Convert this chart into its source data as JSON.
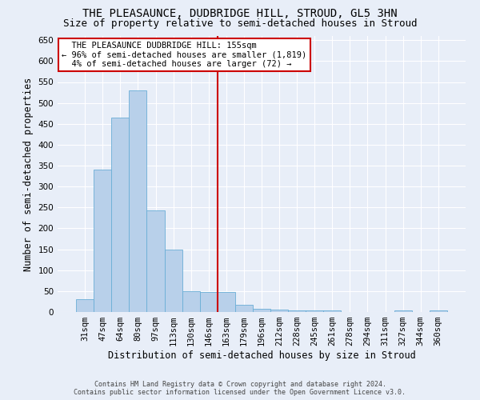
{
  "title_line1": "THE PLEASAUNCE, DUDBRIDGE HILL, STROUD, GL5 3HN",
  "title_line2": "Size of property relative to semi-detached houses in Stroud",
  "xlabel": "Distribution of semi-detached houses by size in Stroud",
  "ylabel": "Number of semi-detached properties",
  "annotation_line1": "  THE PLEASAUNCE DUDBRIDGE HILL: 155sqm  ",
  "annotation_line2": "← 96% of semi-detached houses are smaller (1,819)",
  "annotation_line3": "  4% of semi-detached houses are larger (72) →  ",
  "footer_line1": "Contains HM Land Registry data © Crown copyright and database right 2024.",
  "footer_line2": "Contains public sector information licensed under the Open Government Licence v3.0.",
  "categories": [
    "31sqm",
    "47sqm",
    "64sqm",
    "80sqm",
    "97sqm",
    "113sqm",
    "130sqm",
    "146sqm",
    "163sqm",
    "179sqm",
    "196sqm",
    "212sqm",
    "228sqm",
    "245sqm",
    "261sqm",
    "278sqm",
    "294sqm",
    "311sqm",
    "327sqm",
    "344sqm",
    "360sqm"
  ],
  "values": [
    30,
    340,
    465,
    530,
    243,
    150,
    50,
    47,
    47,
    18,
    8,
    5,
    3,
    3,
    3,
    0,
    0,
    0,
    3,
    0,
    3
  ],
  "bar_color": "#b8d0ea",
  "bar_edge_color": "#6aaed6",
  "marker_color": "#cc0000",
  "ylim": [
    0,
    660
  ],
  "yticks": [
    0,
    50,
    100,
    150,
    200,
    250,
    300,
    350,
    400,
    450,
    500,
    550,
    600,
    650
  ],
  "background_color": "#e8eef8",
  "grid_color": "#ffffff",
  "annotation_box_color": "#ffffff",
  "annotation_box_edge": "#cc0000",
  "title_fontsize": 10,
  "subtitle_fontsize": 9,
  "tick_fontsize": 7.5,
  "ylabel_fontsize": 8.5,
  "xlabel_fontsize": 8.5,
  "footer_fontsize": 6.0
}
